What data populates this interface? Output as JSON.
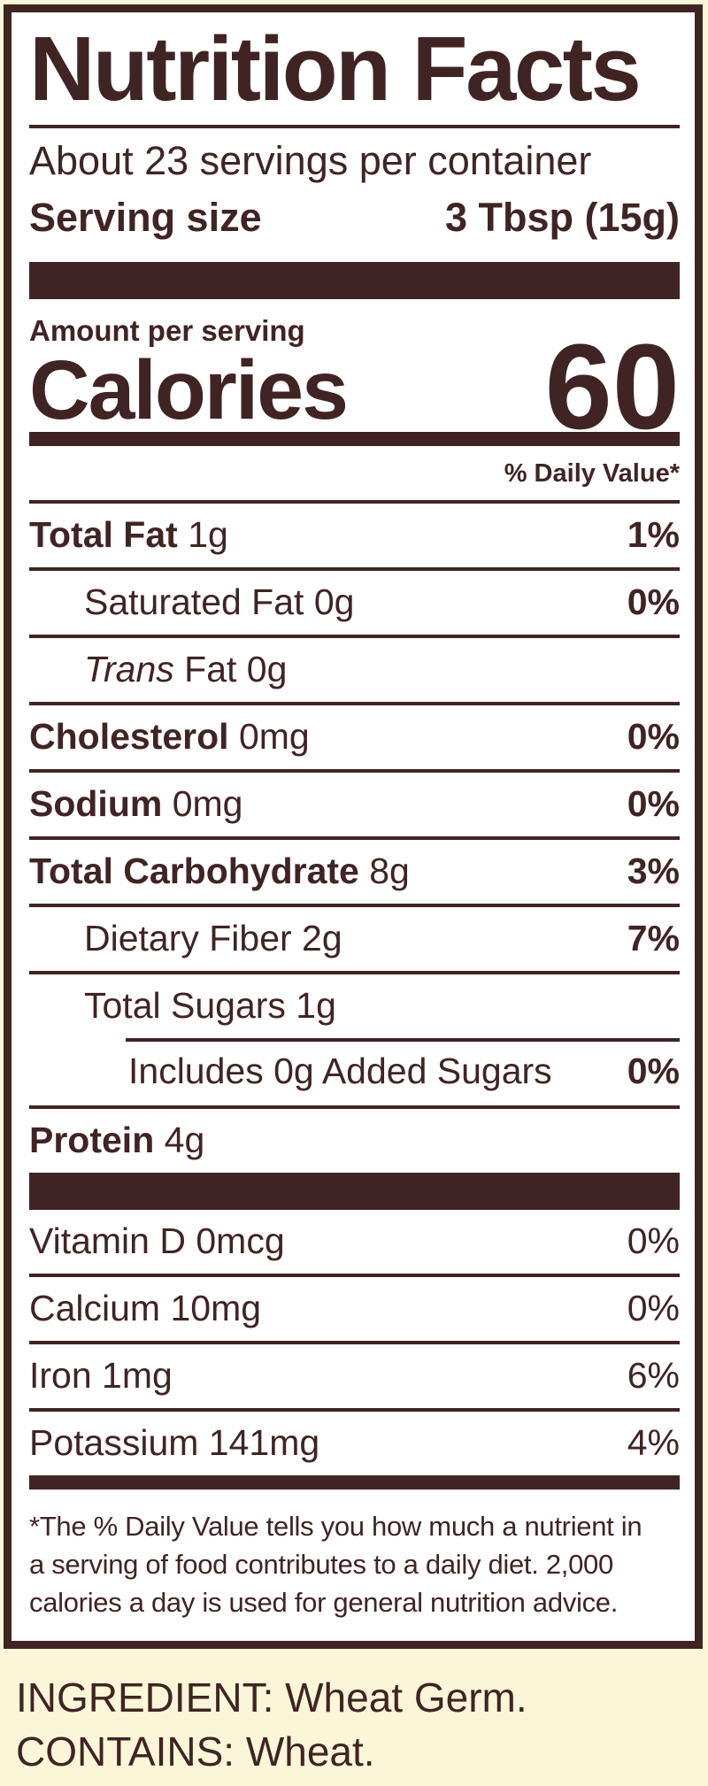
{
  "colors": {
    "ink": "#402423",
    "paper": "#ffffff",
    "bg": "#fcf6d8"
  },
  "label": {
    "title": "Nutrition Facts",
    "servings_per_container": "About 23 servings per container",
    "serving_size": {
      "label": "Serving size",
      "value": "3 Tbsp (15g)"
    },
    "amount_per_serving": "Amount per serving",
    "calories": {
      "label": "Calories",
      "value": "60"
    },
    "daily_value_header": "% Daily Value*",
    "nutrients": [
      {
        "bold": "Total Fat",
        "italic": "",
        "regular": " 1g",
        "dv": "1%"
      },
      {
        "bold": "",
        "italic": "",
        "regular": "Saturated Fat 0g",
        "dv": "0%"
      },
      {
        "bold": "",
        "italic": "Trans",
        "regular": " Fat 0g",
        "dv": ""
      },
      {
        "bold": "Cholesterol",
        "italic": "",
        "regular": " 0mg",
        "dv": "0%"
      },
      {
        "bold": "Sodium",
        "italic": "",
        "regular": " 0mg",
        "dv": "0%"
      },
      {
        "bold": "Total Carbohydrate",
        "italic": "",
        "regular": " 8g",
        "dv": "3%"
      },
      {
        "bold": "",
        "italic": "",
        "regular": "Dietary Fiber 2g",
        "dv": "7%"
      },
      {
        "bold": "",
        "italic": "",
        "regular": "Total Sugars 1g",
        "dv": ""
      },
      {
        "bold": "",
        "italic": "",
        "regular": "Includes 0g Added Sugars",
        "dv": "0%"
      },
      {
        "bold": "Protein",
        "italic": "",
        "regular": " 4g",
        "dv": ""
      }
    ],
    "vitamins": [
      {
        "name": "Vitamin D 0mcg",
        "dv": "0%"
      },
      {
        "name": "Calcium 10mg",
        "dv": "0%"
      },
      {
        "name": "Iron 1mg",
        "dv": "6%"
      },
      {
        "name": "Potassium 141mg",
        "dv": "4%"
      }
    ],
    "footnote": [
      "*The % Daily Value tells you how much a nutrient in",
      "a serving of food contributes to a daily diet. 2,000",
      "calories a day is used for general nutrition advice."
    ]
  },
  "ingredients": {
    "ingredient_line": "INGREDIENT: Wheat Germ.",
    "contains_line": "CONTAINS: Wheat."
  }
}
